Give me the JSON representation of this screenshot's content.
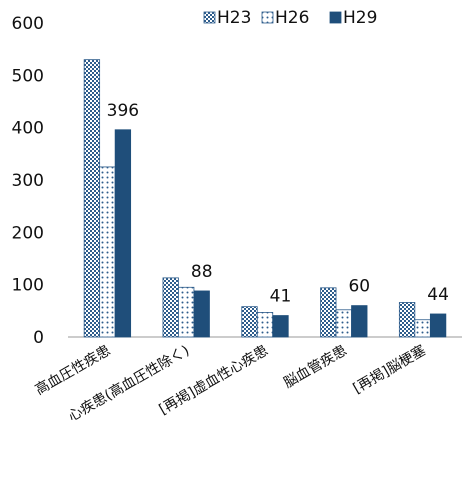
{
  "chart_data": {
    "type": "bar",
    "categories": [
      "高血圧性疾患",
      "心疾患(高血圧性除く)",
      "[再掲]虚血性心疾患",
      "脳血管疾患",
      "[再掲]脳梗塞"
    ],
    "series": [
      {
        "name": "H23",
        "values": [
          530,
          113,
          58,
          94,
          66
        ],
        "color": "#2e5d8c",
        "pattern": "checker"
      },
      {
        "name": "H26",
        "values": [
          325,
          95,
          47,
          52,
          33
        ],
        "color": "#2e5d8c",
        "pattern": "dots"
      },
      {
        "name": "H29",
        "values": [
          396,
          88,
          41,
          60,
          44
        ],
        "color": "#1f4e7a",
        "pattern": "solid"
      }
    ],
    "data_labels": {
      "series": "H29",
      "values": [
        "396",
        "88",
        "41",
        "60",
        "44"
      ]
    },
    "ylim": [
      0,
      600
    ],
    "yticks": [
      0,
      100,
      200,
      300,
      400,
      500,
      600
    ],
    "legend_position": "top",
    "grid": false
  }
}
